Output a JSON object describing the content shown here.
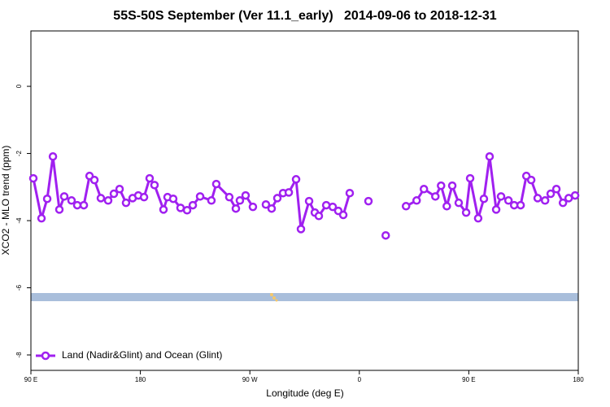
{
  "chart_data": {
    "type": "line",
    "title": "55S-50S September (Ver 11.1_early)   2014-09-06 to 2018-12-31",
    "xlabel": "Longitude (deg E)",
    "ylabel": "XCO2 - MLO trend (ppm)",
    "xlim": [
      90,
      540
    ],
    "ylim": [
      -8.46,
      1.65
    ],
    "xticks": [
      {
        "value": 90,
        "label": "90 E"
      },
      {
        "value": 180,
        "label": "180"
      },
      {
        "value": 270,
        "label": "90 W"
      },
      {
        "value": 360,
        "label": "0"
      },
      {
        "value": 450,
        "label": "90 E"
      },
      {
        "value": 540,
        "label": "180"
      }
    ],
    "yticks": [
      0,
      -2,
      -4,
      -6,
      -8
    ],
    "legend": "bottom left",
    "x": [
      92.0,
      98.7,
      103.4,
      108.1,
      113.4,
      117.4,
      123.4,
      128.1,
      133.5,
      138.2,
      142.2,
      147.5,
      153.5,
      158.2,
      162.9,
      168.2,
      173.6,
      178.3,
      183.0,
      187.6,
      191.6,
      199.0,
      202.3,
      207.0,
      213.0,
      218.4,
      223.1,
      229.1,
      238.4,
      242.4,
      253.1,
      258.5,
      261.8,
      266.5,
      272.5,
      278.6,
      283.2,
      287.9,
      292.6,
      297.3,
      302.0,
      308.0,
      312.0,
      318.7,
      323.4,
      326.7,
      332.8,
      338.1,
      342.7,
      346.8,
      352.1,
      359.5,
      367.5,
      374.2,
      381.7,
      390.2,
      398.4,
      407.1,
      413.1,
      422.5,
      427.2,
      431.9,
      436.4,
      441.7,
      447.8,
      451.1,
      457.7,
      462.4,
      467.1,
      472.5,
      476.5,
      482.6,
      487.3,
      492.6,
      497.3,
      501.3,
      506.6,
      512.7,
      517.3,
      522.0,
      527.4,
      532.1,
      537.4
    ],
    "series": [
      {
        "name": "Land (Nadir&Glint) and Ocean (Glint)",
        "color": "#a020f0",
        "values": [
          -2.74,
          -3.93,
          -3.35,
          -2.09,
          -3.67,
          -3.28,
          -3.4,
          -3.54,
          -3.54,
          -2.67,
          -2.79,
          -3.33,
          -3.4,
          -3.2,
          -3.06,
          -3.47,
          -3.33,
          -3.25,
          -3.3,
          -2.74,
          -2.94,
          -3.67,
          -3.3,
          -3.35,
          -3.62,
          -3.69,
          -3.54,
          -3.28,
          -3.4,
          -2.91,
          -3.3,
          -3.64,
          -3.4,
          -3.25,
          -3.59,
          null,
          -3.52,
          -3.64,
          -3.33,
          -3.18,
          -3.16,
          -2.77,
          -4.25,
          -3.42,
          -3.76,
          -3.86,
          -3.54,
          -3.59,
          -3.71,
          -3.83,
          -3.18,
          null,
          -3.42,
          null,
          -4.44,
          null,
          -3.57,
          -3.4,
          -3.06,
          -3.28,
          -2.96,
          -3.57,
          -2.96,
          -3.47,
          -3.76,
          -2.74,
          -3.93,
          -3.35,
          -2.09,
          -3.67,
          -3.28,
          -3.4,
          -3.54,
          -3.54,
          -2.67,
          -2.79,
          -3.33,
          -3.4,
          -3.2,
          -3.06,
          -3.47,
          -3.33,
          -3.25
        ]
      }
    ]
  }
}
